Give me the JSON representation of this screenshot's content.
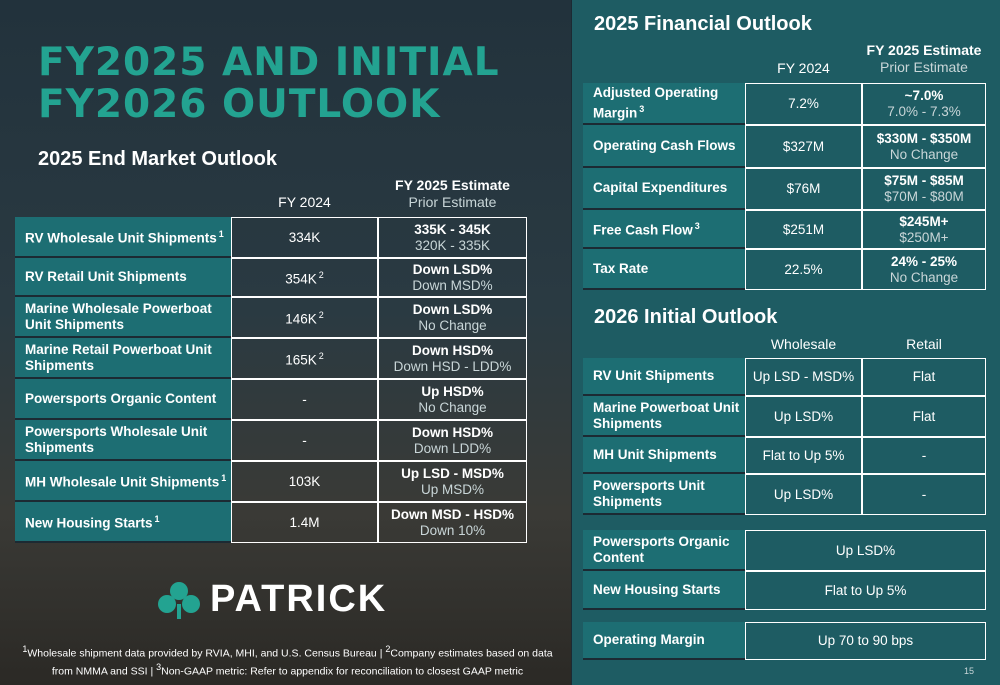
{
  "title_lines": [
    "FY2025 AND INITIAL",
    "FY2026 OUTLOOK"
  ],
  "end_market": {
    "title": "2025 End Market Outlook",
    "headers": {
      "fy2024": "FY 2024",
      "estimate": "FY 2025 Estimate",
      "prior": "Prior Estimate"
    },
    "rows": [
      {
        "label": "RV Wholesale Unit Shipments",
        "note": "1",
        "fy2024": "334K",
        "estimate": "335K - 345K",
        "prior": "320K - 335K"
      },
      {
        "label": "RV Retail Unit Shipments",
        "fy2024": "354K",
        "fy2024_note": "2",
        "estimate": "Down LSD%",
        "prior": "Down MSD%"
      },
      {
        "label": "Marine Wholesale Powerboat Unit Shipments",
        "fy2024": "146K",
        "fy2024_note": "2",
        "estimate": "Down LSD%",
        "prior": "No Change"
      },
      {
        "label": "Marine Retail Powerboat Unit Shipments",
        "fy2024": "165K",
        "fy2024_note": "2",
        "estimate": "Down HSD%",
        "prior": "Down HSD - LDD%"
      },
      {
        "label": "Powersports Organic Content",
        "fy2024": "-",
        "estimate": "Up HSD%",
        "prior": "No Change"
      },
      {
        "label": "Powersports Wholesale Unit Shipments",
        "fy2024": "-",
        "estimate": "Down HSD%",
        "prior": "Down LDD%"
      },
      {
        "label": "MH Wholesale Unit Shipments",
        "note": "1",
        "fy2024": "103K",
        "estimate": "Up LSD - MSD%",
        "prior": "Up MSD%"
      },
      {
        "label": "New Housing Starts",
        "note": "1",
        "fy2024": "1.4M",
        "estimate": "Down MSD - HSD%",
        "prior": "Down 10%"
      }
    ]
  },
  "financial": {
    "title": "2025 Financial Outlook",
    "headers": {
      "fy2024": "FY 2024",
      "estimate": "FY 2025 Estimate",
      "prior": "Prior Estimate"
    },
    "rows": [
      {
        "label": "Adjusted Operating Margin",
        "note": "3",
        "fy2024": "7.2%",
        "estimate": "~7.0%",
        "prior": "7.0% - 7.3%"
      },
      {
        "label": "Operating Cash Flows",
        "fy2024": "$327M",
        "estimate": "$330M - $350M",
        "prior": "No Change"
      },
      {
        "label": "Capital Expenditures",
        "fy2024": "$76M",
        "estimate": "$75M - $85M",
        "prior": "$70M - $80M"
      },
      {
        "label": "Free Cash Flow",
        "note": "3",
        "fy2024": "$251M",
        "estimate": "$245M+",
        "prior": "$250M+"
      },
      {
        "label": "Tax Rate",
        "fy2024": "22.5%",
        "estimate": "24% - 25%",
        "prior": "No Change"
      }
    ]
  },
  "initial": {
    "title": "2026 Initial Outlook",
    "headers": {
      "wholesale": "Wholesale",
      "retail": "Retail"
    },
    "rows": [
      {
        "label": "RV Unit Shipments",
        "wholesale": "Up LSD - MSD%",
        "retail": "Flat"
      },
      {
        "label": "Marine Powerboat Unit Shipments",
        "wholesale": "Up LSD%",
        "retail": "Flat"
      },
      {
        "label": "MH Unit Shipments",
        "wholesale": "Flat to Up 5%",
        "retail": "-"
      },
      {
        "label": "Powersports Unit Shipments",
        "wholesale": "Up LSD%",
        "retail": "-"
      }
    ],
    "merged_rows": [
      {
        "label": "Powersports Organic Content",
        "value": "Up LSD%"
      },
      {
        "label": "New Housing Starts",
        "value": "Flat to Up 5%"
      }
    ],
    "margin_row": {
      "label": "Operating Margin",
      "value": "Up 70 to 90 bps"
    }
  },
  "logo": "PATRICK",
  "footnotes": [
    {
      "mark": "1",
      "text": "Wholesale shipment data provided by RVIA, MHI, and U.S. Census Bureau | "
    },
    {
      "mark": "2",
      "text": "Company estimates based on data from NMMA and SSI | "
    },
    {
      "mark": "3",
      "text": "Non-GAAP metric: Refer to appendix for reconciliation to closest GAAP metric"
    }
  ],
  "page_number": "15"
}
